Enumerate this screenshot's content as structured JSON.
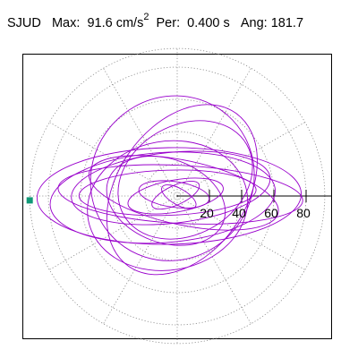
{
  "header": {
    "station": "SJUD",
    "max_label": "Max:",
    "max_value": "91.6",
    "max_unit": "cm/s",
    "max_unit_exp": "2",
    "per_label": "Per:",
    "per_value": "0.400 s",
    "ang_label": "Ang:",
    "ang_value": "181.7"
  },
  "chart_data": {
    "type": "line",
    "subtype": "polar-particle-motion",
    "radial_ticks": [
      20,
      40,
      60,
      80
    ],
    "radial_tick_labels": [
      "20",
      "40",
      "60",
      "80"
    ],
    "radial_max": 91.6,
    "angle_gridlines_deg": [
      0,
      30,
      60,
      90,
      120,
      150,
      180,
      210,
      240,
      270,
      300,
      330
    ],
    "peak_angle_deg": 181.7,
    "peak_marker_color": "#119977",
    "series": [
      {
        "color": "#9900cc",
        "loops": [
          {
            "cx": -12,
            "cy": 4,
            "a": 55,
            "b": 14,
            "rot": 2
          },
          {
            "cx": -8,
            "cy": 10,
            "a": 62,
            "b": 22,
            "rot": 6
          },
          {
            "cx": 4,
            "cy": 2,
            "a": 76,
            "b": 18,
            "rot": -3
          },
          {
            "cx": -18,
            "cy": -2,
            "a": 70,
            "b": 28,
            "rot": 4
          },
          {
            "cx": -10,
            "cy": 0,
            "a": 82,
            "b": 30,
            "rot": 1
          },
          {
            "cx": 6,
            "cy": 8,
            "a": 40,
            "b": 58,
            "rot": -35
          },
          {
            "cx": -6,
            "cy": 22,
            "a": 50,
            "b": 52,
            "rot": -40
          },
          {
            "cx": 8,
            "cy": 4,
            "a": 60,
            "b": 20,
            "rot": -12
          },
          {
            "cx": -2,
            "cy": 0,
            "a": 30,
            "b": 10,
            "rot": 10
          },
          {
            "cx": -4,
            "cy": 2,
            "a": 22,
            "b": 8,
            "rot": -8
          },
          {
            "cx": -2,
            "cy": 1,
            "a": 16,
            "b": 6,
            "rot": 25
          },
          {
            "cx": 2,
            "cy": -1,
            "a": 12,
            "b": 5,
            "rot": -30
          },
          {
            "cx": -12,
            "cy": -12,
            "a": 50,
            "b": 40,
            "rot": 10
          },
          {
            "cx": -14,
            "cy": -6,
            "a": 38,
            "b": 26,
            "rot": -20
          },
          {
            "cx": 10,
            "cy": 20,
            "a": 44,
            "b": 34,
            "rot": 30
          }
        ]
      }
    ],
    "grid": true,
    "axes_color": "#000000",
    "grid_color": "#888888"
  }
}
